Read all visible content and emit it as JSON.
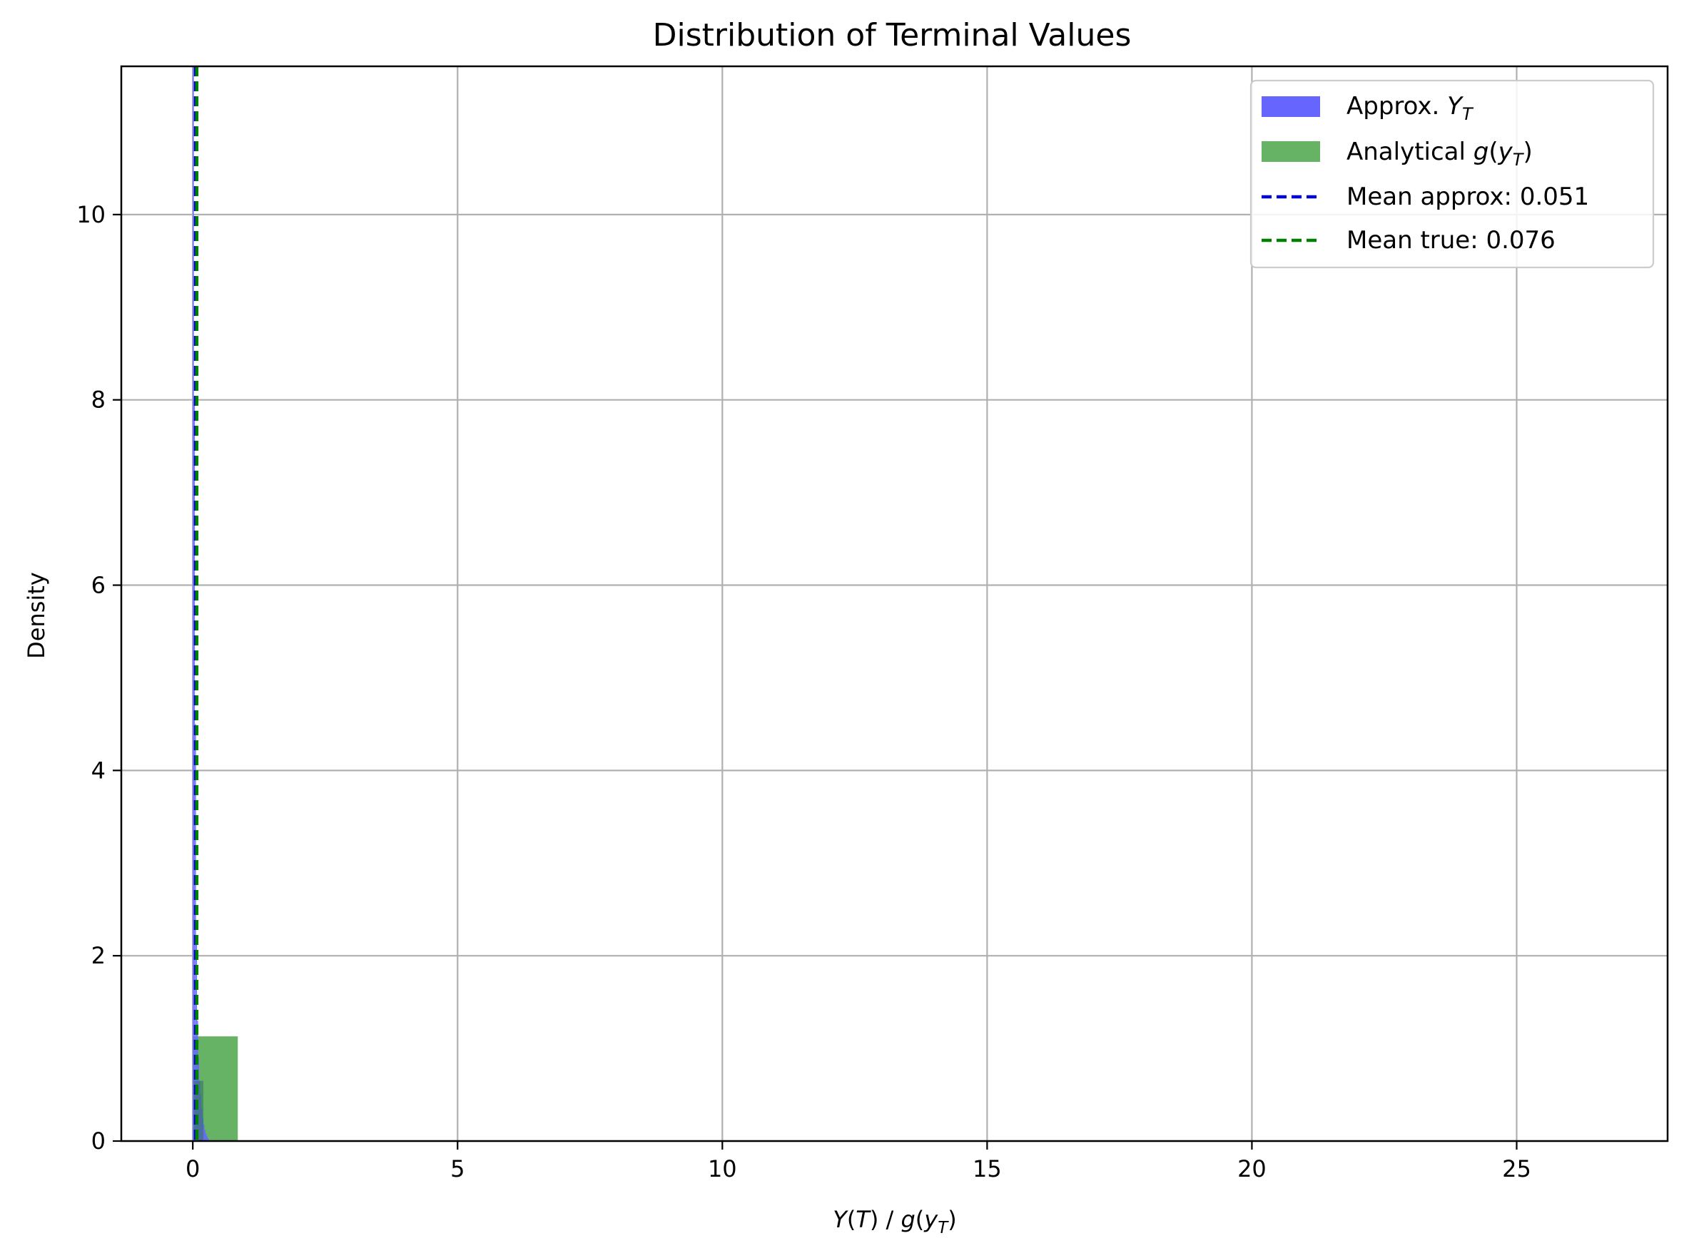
{
  "chart_data": {
    "type": "bar",
    "title": "Distribution of Terminal Values",
    "xlabel": "Y(T) / g(y_T)",
    "ylabel": "Density",
    "xlim": [
      -1.35,
      27.85
    ],
    "ylim": [
      0,
      11.6
    ],
    "xticks": [
      0,
      5,
      10,
      15,
      20,
      25
    ],
    "yticks": [
      0,
      2,
      4,
      6,
      8,
      10
    ],
    "grid": true,
    "legend_position": "top-right",
    "series": [
      {
        "name": "Approx. Y_T",
        "kind": "histogram",
        "color": "#6666ff",
        "bin_width": 0.02,
        "bins": [
          {
            "x0": 0.0,
            "value": 12.0
          },
          {
            "x0": 0.02,
            "value": 8.0
          },
          {
            "x0": 0.04,
            "value": 4.5
          },
          {
            "x0": 0.06,
            "value": 2.15
          },
          {
            "x0": 0.08,
            "value": 1.3
          },
          {
            "x0": 0.1,
            "value": 0.9
          },
          {
            "x0": 0.12,
            "value": 0.65
          },
          {
            "x0": 0.14,
            "value": 0.5
          },
          {
            "x0": 0.16,
            "value": 0.35
          },
          {
            "x0": 0.18,
            "value": 0.25
          },
          {
            "x0": 0.2,
            "value": 0.18
          },
          {
            "x0": 0.22,
            "value": 0.12
          },
          {
            "x0": 0.24,
            "value": 0.08
          },
          {
            "x0": 0.26,
            "value": 0.05
          },
          {
            "x0": 0.28,
            "value": 0.03
          }
        ]
      },
      {
        "name": "Analytical g(y_T)",
        "kind": "histogram",
        "color": "#66b366",
        "bin_width": 0.85,
        "bins": [
          {
            "x0": 0.0,
            "value": 1.13
          },
          {
            "x0": 0.85,
            "value": 0.0
          },
          {
            "x0": 1.7,
            "value": 0.004
          }
        ]
      },
      {
        "name": "Mean approx: 0.051",
        "kind": "vline",
        "x": 0.051,
        "color": "#0000cc"
      },
      {
        "name": "Mean true: 0.076",
        "kind": "vline",
        "x": 0.076,
        "color": "#008000"
      }
    ]
  },
  "legend": {
    "approx_prefix": "Approx. ",
    "approx_var": "Y",
    "approx_sub": "T",
    "analytical_prefix": "Analytical ",
    "analytical_var": "g",
    "analytical_open": "(",
    "analytical_inner": "y",
    "analytical_sub": "T",
    "analytical_close": ")",
    "mean_approx": "Mean approx: 0.051",
    "mean_true": "Mean true: 0.076"
  },
  "xlabel_parts": {
    "a": "Y",
    "b": "(",
    "c": "T",
    "d": ") / ",
    "e": "g",
    "f": "(",
    "g": "y",
    "h": "T",
    "i": ")"
  }
}
